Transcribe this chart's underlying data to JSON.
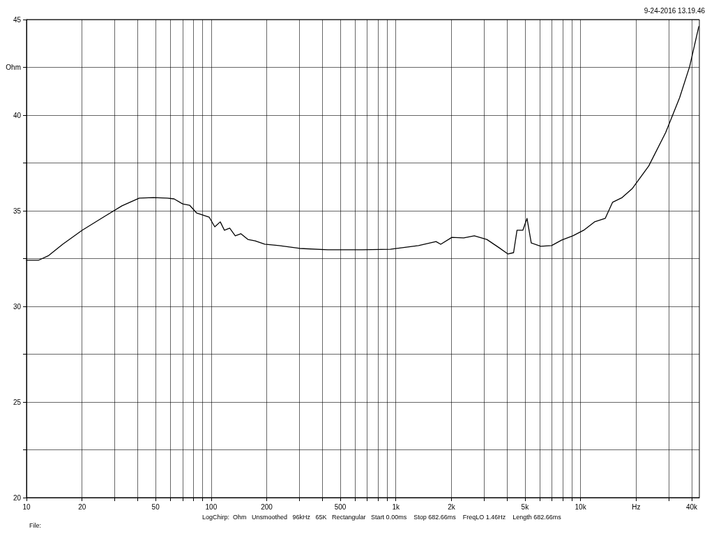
{
  "chart_data": {
    "type": "line",
    "subtitle": "9-24-2016 13.19.46",
    "annotations": [
      "LogChirp:  Ohm   Unsmoothed   96kHz   65K   Rectangular   Start 0.00ms    Stop 682.66ms    FreqLO 1.46Hz    Length 682.66ms",
      "File:"
    ],
    "log": "x",
    "grid": true,
    "marker": "none",
    "line_style": "solid",
    "xlim": [
      10,
      44000
    ],
    "xticks": [
      10,
      20,
      {
        "value": 30,
        "label": null
      },
      {
        "value": 40,
        "label": null
      },
      50,
      {
        "value": 60,
        "label": null
      },
      {
        "value": 70,
        "label": null
      },
      {
        "value": 80,
        "label": null
      },
      {
        "value": 90,
        "label": null
      },
      100,
      200,
      {
        "value": 300,
        "label": null
      },
      {
        "value": 400,
        "label": null
      },
      500,
      {
        "value": 600,
        "label": null
      },
      {
        "value": 700,
        "label": null
      },
      {
        "value": 800,
        "label": null
      },
      {
        "value": 900,
        "label": null
      },
      {
        "value": 1000,
        "label": "1k"
      },
      {
        "value": 2000,
        "label": "2k"
      },
      {
        "value": 3000,
        "label": null
      },
      {
        "value": 4000,
        "label": null
      },
      {
        "value": 5000,
        "label": "5k"
      },
      {
        "value": 6000,
        "label": null
      },
      {
        "value": 7000,
        "label": null
      },
      {
        "value": 8000,
        "label": null
      },
      {
        "value": 9000,
        "label": null
      },
      {
        "value": 10000,
        "label": "10k"
      },
      {
        "value": 20000,
        "label": "Hz"
      },
      {
        "value": 30000,
        "label": null
      },
      {
        "value": 40000,
        "label": "40k"
      }
    ],
    "ylim": [
      20,
      45
    ],
    "yticks": [
      20,
      {
        "value": 22.5,
        "label": null
      },
      25,
      {
        "value": 27.5,
        "label": null
      },
      30,
      {
        "value": 32.5,
        "label": null
      },
      35,
      {
        "value": 37.5,
        "label": null
      },
      40,
      {
        "value": 42.5,
        "label": "Ohm"
      },
      45
    ],
    "series": [
      {
        "color": "#000000",
        "x": [
          10,
          11.6,
          13.2,
          15.7,
          20,
          26.5,
          32.9,
          40.8,
          48.6,
          57.9,
          63,
          70,
          76.4,
          83.3,
          97.5,
          104.6,
          112,
          118,
          126,
          135,
          145,
          158,
          173,
          195,
          233,
          302,
          428,
          658,
          935,
          1327,
          1650,
          1750,
          2010,
          2330,
          2660,
          3110,
          3620,
          4050,
          4340,
          4530,
          4870,
          5130,
          5410,
          6090,
          6970,
          7920,
          9090,
          10400,
          11900,
          13600,
          14900,
          16800,
          19100,
          23400,
          28900,
          34400,
          39000,
          43700
        ],
        "values": [
          32.41,
          32.41,
          32.66,
          33.25,
          33.98,
          34.71,
          35.26,
          35.66,
          35.69,
          35.66,
          35.62,
          35.36,
          35.29,
          34.89,
          34.67,
          34.16,
          34.42,
          33.98,
          34.09,
          33.69,
          33.8,
          33.5,
          33.43,
          33.25,
          33.18,
          33.03,
          32.96,
          32.96,
          32.99,
          33.18,
          33.39,
          33.25,
          33.61,
          33.58,
          33.69,
          33.5,
          33.07,
          32.74,
          32.81,
          33.98,
          33.98,
          34.6,
          33.32,
          33.14,
          33.18,
          33.47,
          33.69,
          33.98,
          34.42,
          34.6,
          35.44,
          35.69,
          36.17,
          37.34,
          39.09,
          40.91,
          42.55,
          44.64
        ]
      }
    ]
  }
}
